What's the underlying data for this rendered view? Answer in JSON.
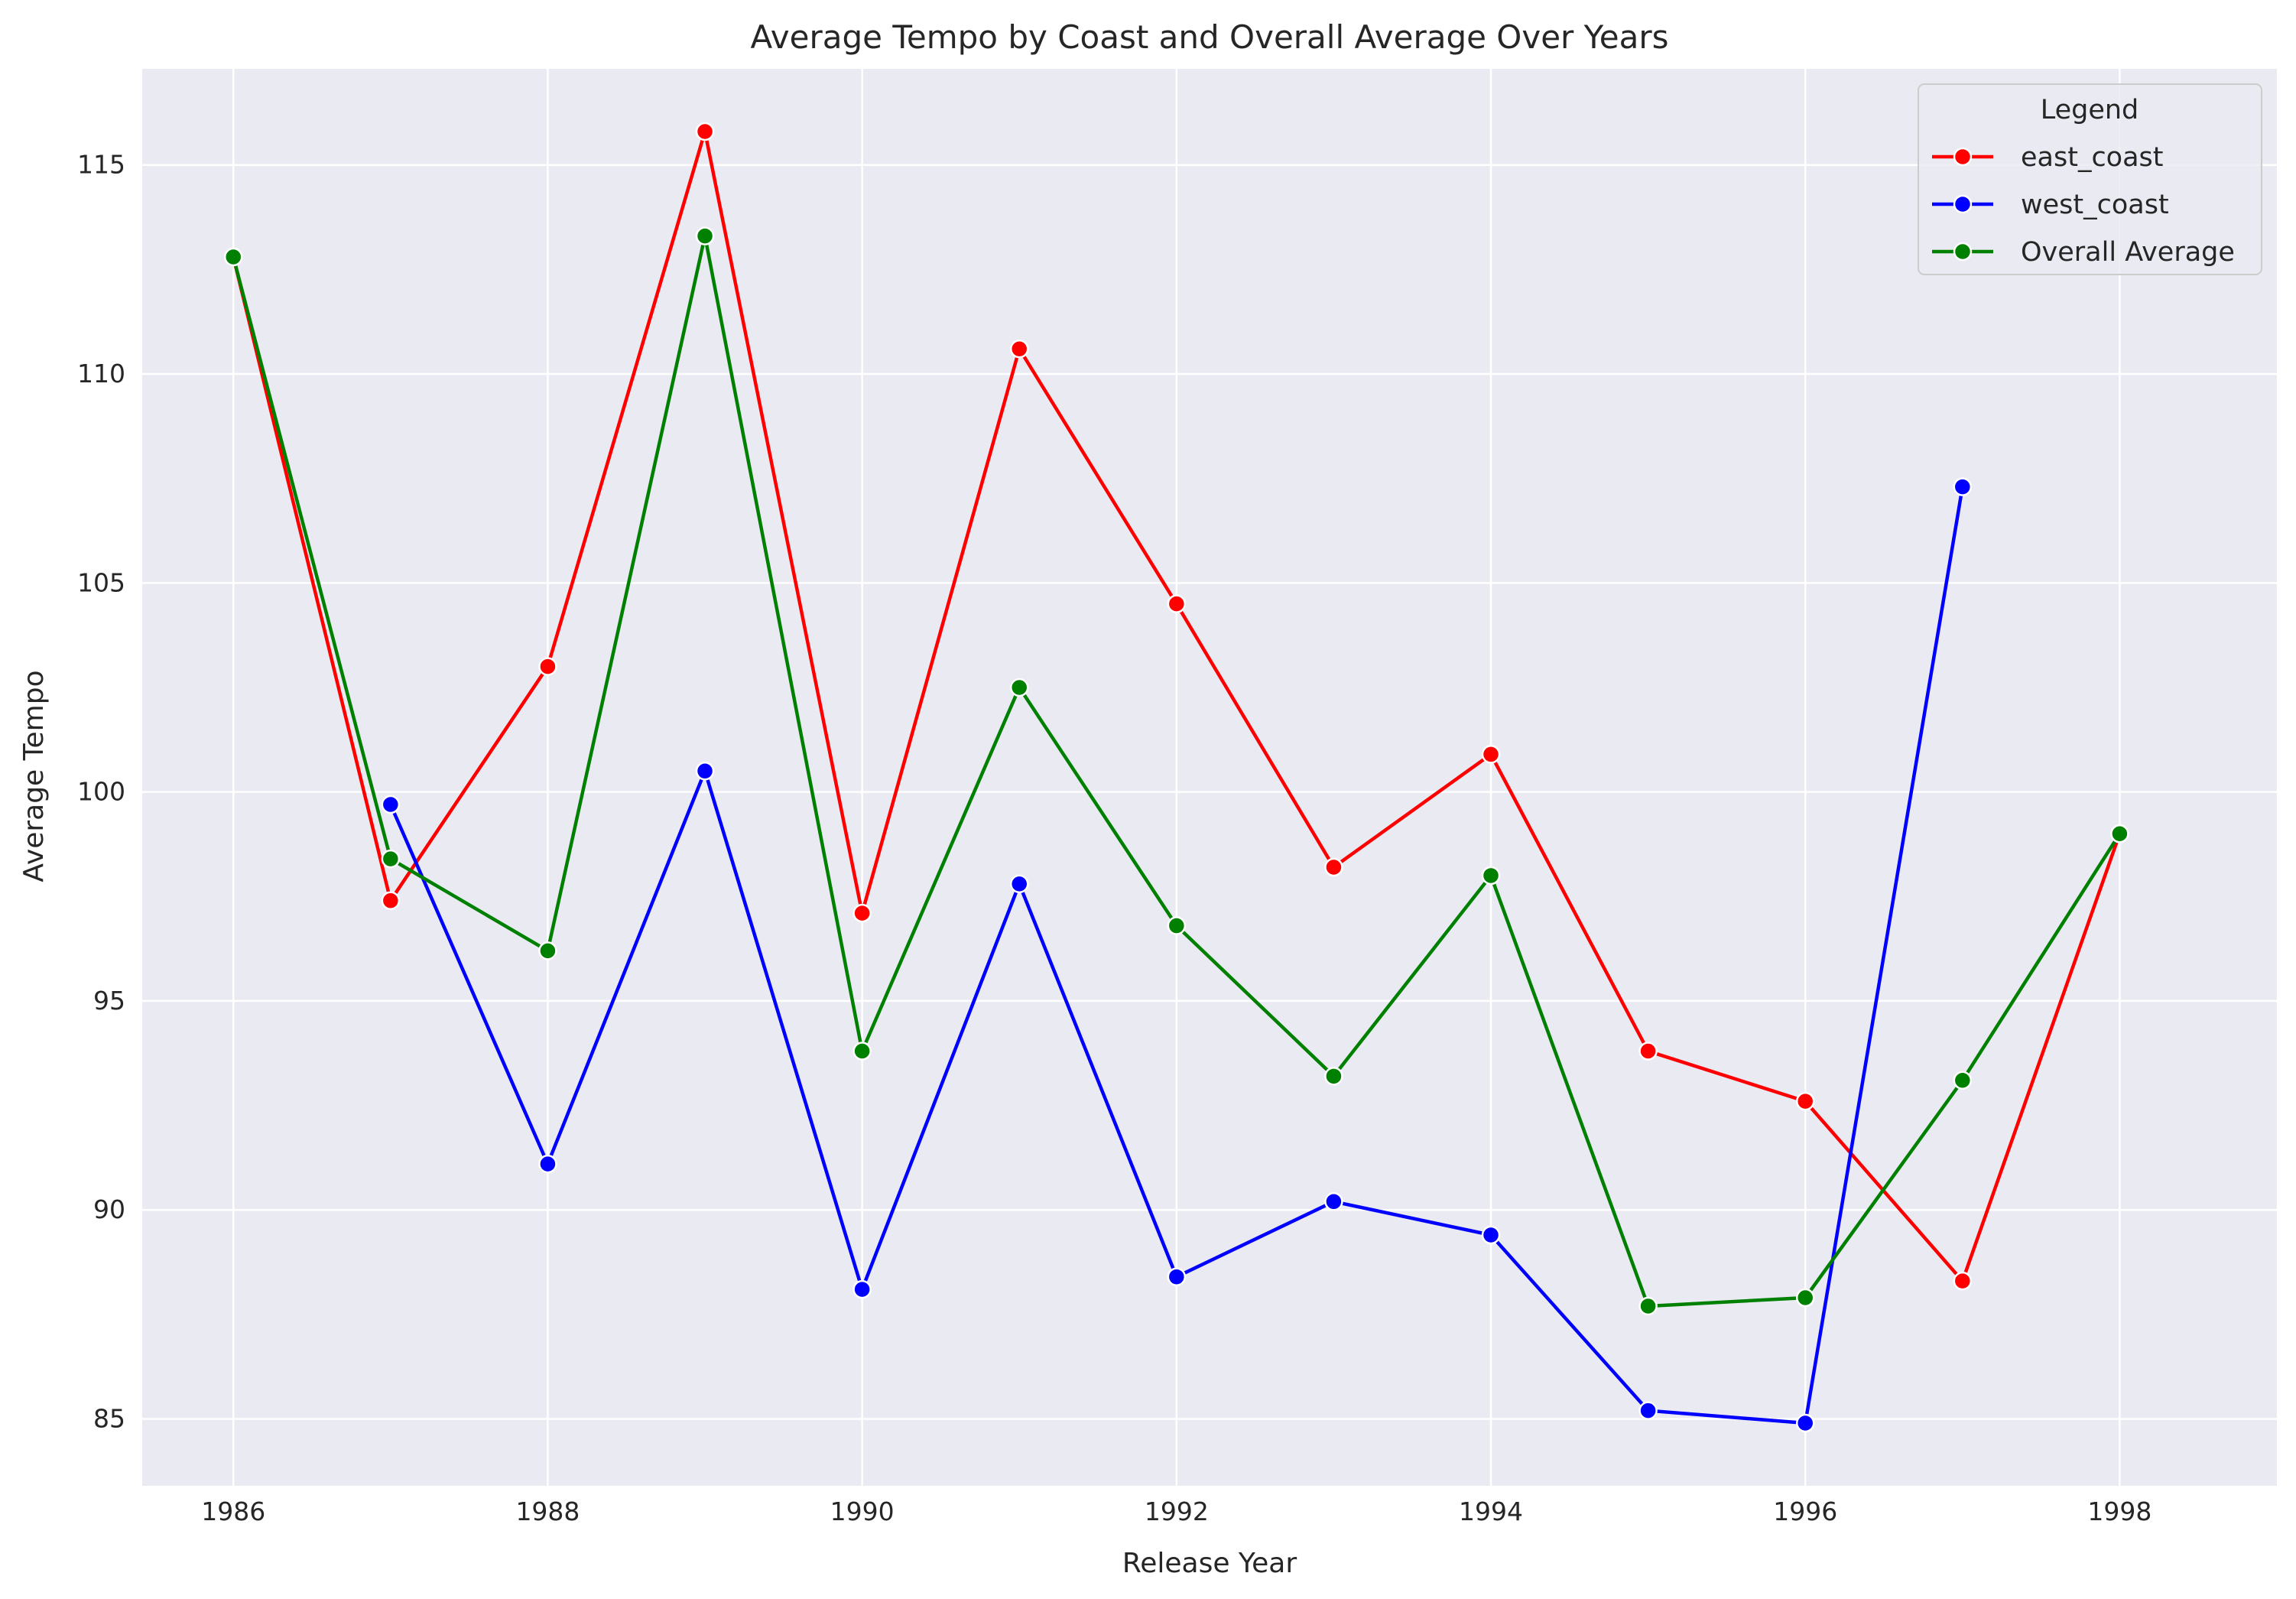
{
  "chart_data": {
    "type": "line",
    "title": "Average Tempo by Coast and Overall Average Over Years",
    "xlabel": "Release Year",
    "ylabel": "Average Tempo",
    "xlim": [
      1985.42,
      1999.0
    ],
    "ylim": [
      83.4,
      117.3
    ],
    "xticks": [
      1986,
      1988,
      1990,
      1992,
      1994,
      1996,
      1998
    ],
    "yticks": [
      85,
      90,
      95,
      100,
      105,
      110,
      115
    ],
    "grid": true,
    "legend": {
      "title": "Legend",
      "placement": "upper right"
    },
    "series": [
      {
        "name": "east_coast",
        "color": "#ff0000",
        "x": [
          1986,
          1987,
          1988,
          1989,
          1990,
          1991,
          1992,
          1993,
          1994,
          1995,
          1996,
          1997,
          1998
        ],
        "y": [
          112.8,
          97.4,
          103.0,
          115.8,
          97.1,
          110.6,
          104.5,
          98.2,
          100.9,
          93.8,
          92.6,
          88.3,
          99.0
        ]
      },
      {
        "name": "west_coast",
        "color": "#0000ff",
        "x": [
          1987,
          1988,
          1989,
          1990,
          1991,
          1992,
          1993,
          1994,
          1995,
          1996,
          1997
        ],
        "y": [
          99.7,
          91.1,
          100.5,
          88.1,
          97.8,
          88.4,
          90.2,
          89.4,
          85.2,
          84.9,
          107.3
        ]
      },
      {
        "name": "Overall Average",
        "color": "#008000",
        "x": [
          1986,
          1987,
          1988,
          1989,
          1990,
          1991,
          1992,
          1993,
          1994,
          1995,
          1996,
          1997,
          1998
        ],
        "y": [
          112.8,
          98.4,
          96.2,
          113.3,
          93.8,
          102.5,
          96.8,
          93.2,
          98.0,
          87.7,
          87.9,
          93.1,
          99.0
        ]
      }
    ]
  }
}
